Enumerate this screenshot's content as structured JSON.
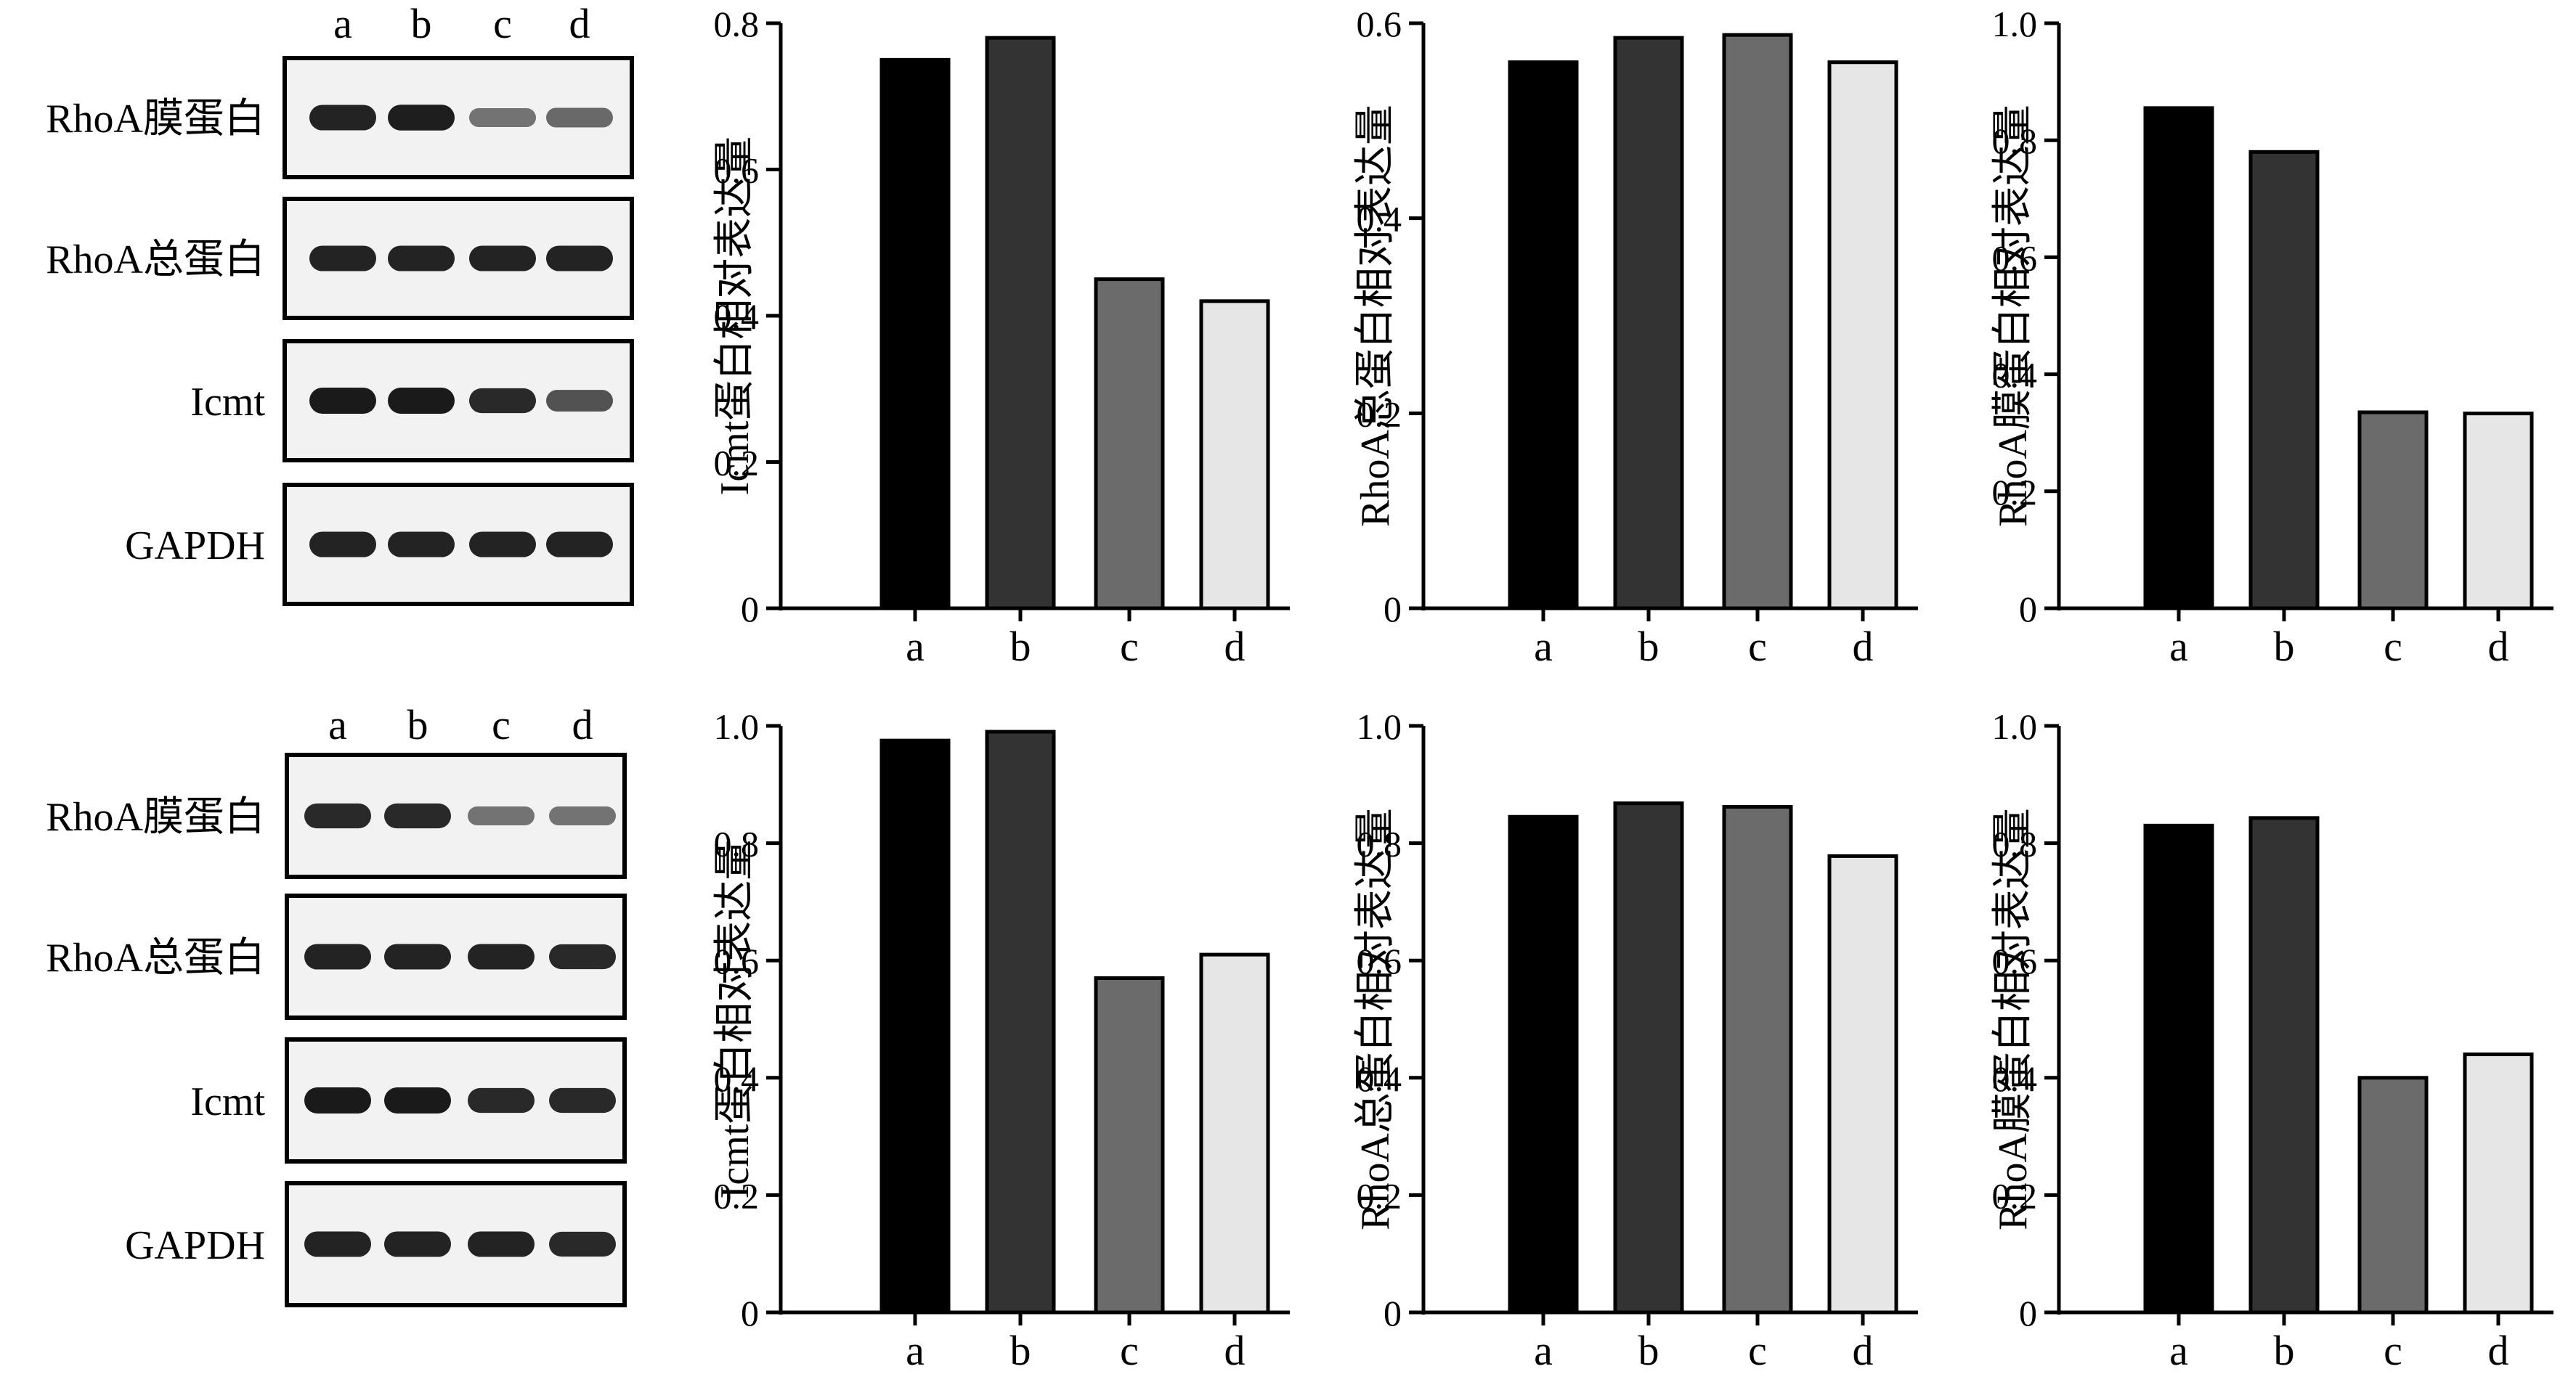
{
  "colors": {
    "bar_a": "#000000",
    "bar_b": "#333333",
    "bar_c": "#6b6b6b",
    "bar_d": "#e6e6e6",
    "band": "#1a1a1a",
    "stroke": "#000000"
  },
  "blots": [
    {
      "lanes": [
        "a",
        "b",
        "c",
        "d"
      ],
      "rows": [
        {
          "label": "RhoA膜蛋白",
          "intensity": [
            0.95,
            0.97,
            0.45,
            0.5
          ]
        },
        {
          "label": "RhoA总蛋白",
          "intensity": [
            0.95,
            0.95,
            0.95,
            0.95
          ]
        },
        {
          "label": "Icmt",
          "intensity": [
            1.0,
            1.0,
            0.9,
            0.65
          ]
        },
        {
          "label": "GAPDH",
          "intensity": [
            0.95,
            0.95,
            0.95,
            0.95
          ]
        }
      ]
    },
    {
      "lanes": [
        "a",
        "b",
        "c",
        "d"
      ],
      "rows": [
        {
          "label": "RhoA膜蛋白",
          "intensity": [
            0.9,
            0.9,
            0.45,
            0.45
          ]
        },
        {
          "label": "RhoA总蛋白",
          "intensity": [
            0.95,
            0.95,
            0.95,
            0.9
          ]
        },
        {
          "label": "Icmt",
          "intensity": [
            1.0,
            1.0,
            0.9,
            0.9
          ]
        },
        {
          "label": "GAPDH",
          "intensity": [
            0.95,
            0.95,
            0.95,
            0.9
          ]
        }
      ]
    }
  ],
  "chart_data": [
    {
      "type": "bar",
      "ylabel": "Icmt蛋白相对表达量",
      "categories": [
        "a",
        "b",
        "c",
        "d"
      ],
      "values": [
        0.75,
        0.78,
        0.45,
        0.42
      ],
      "ylim": [
        0,
        0.8
      ],
      "yticks": [
        "0",
        "0.2",
        "0.4",
        "0.6",
        "0.8"
      ]
    },
    {
      "type": "bar",
      "ylabel": "RhoA总蛋白相对表达量",
      "categories": [
        "a",
        "b",
        "c",
        "d"
      ],
      "values": [
        0.56,
        0.585,
        0.588,
        0.56
      ],
      "ylim": [
        0,
        0.6
      ],
      "yticks": [
        "0",
        "0.2",
        "0.4",
        "0.6"
      ]
    },
    {
      "type": "bar",
      "ylabel": "RhoA膜蛋白相对表达量",
      "categories": [
        "a",
        "b",
        "c",
        "d"
      ],
      "values": [
        0.855,
        0.78,
        0.335,
        0.333
      ],
      "ylim": [
        0,
        1.0
      ],
      "yticks": [
        "0",
        "0.2",
        "0.4",
        "0.6",
        "0.8",
        "1.0"
      ]
    },
    {
      "type": "bar",
      "ylabel": "Icmt蛋白相对表达量",
      "categories": [
        "a",
        "b",
        "c",
        "d"
      ],
      "values": [
        0.975,
        0.99,
        0.57,
        0.61
      ],
      "ylim": [
        0,
        1.0
      ],
      "yticks": [
        "0",
        "0.2",
        "0.4",
        "0.6",
        "0.8",
        "1.0"
      ]
    },
    {
      "type": "bar",
      "ylabel": "RhoA总蛋白相对表达量",
      "categories": [
        "a",
        "b",
        "c",
        "d"
      ],
      "values": [
        0.845,
        0.868,
        0.862,
        0.778
      ],
      "ylim": [
        0,
        1.0
      ],
      "yticks": [
        "0",
        "0.2",
        "0.4",
        "0.6",
        "0.8",
        "1.0"
      ]
    },
    {
      "type": "bar",
      "ylabel": "RhoA膜蛋白相对表达量",
      "categories": [
        "a",
        "b",
        "c",
        "d"
      ],
      "values": [
        0.83,
        0.843,
        0.4,
        0.44
      ],
      "ylim": [
        0,
        1.0
      ],
      "yticks": [
        "0",
        "0.2",
        "0.4",
        "0.6",
        "0.8",
        "1.0"
      ]
    }
  ]
}
